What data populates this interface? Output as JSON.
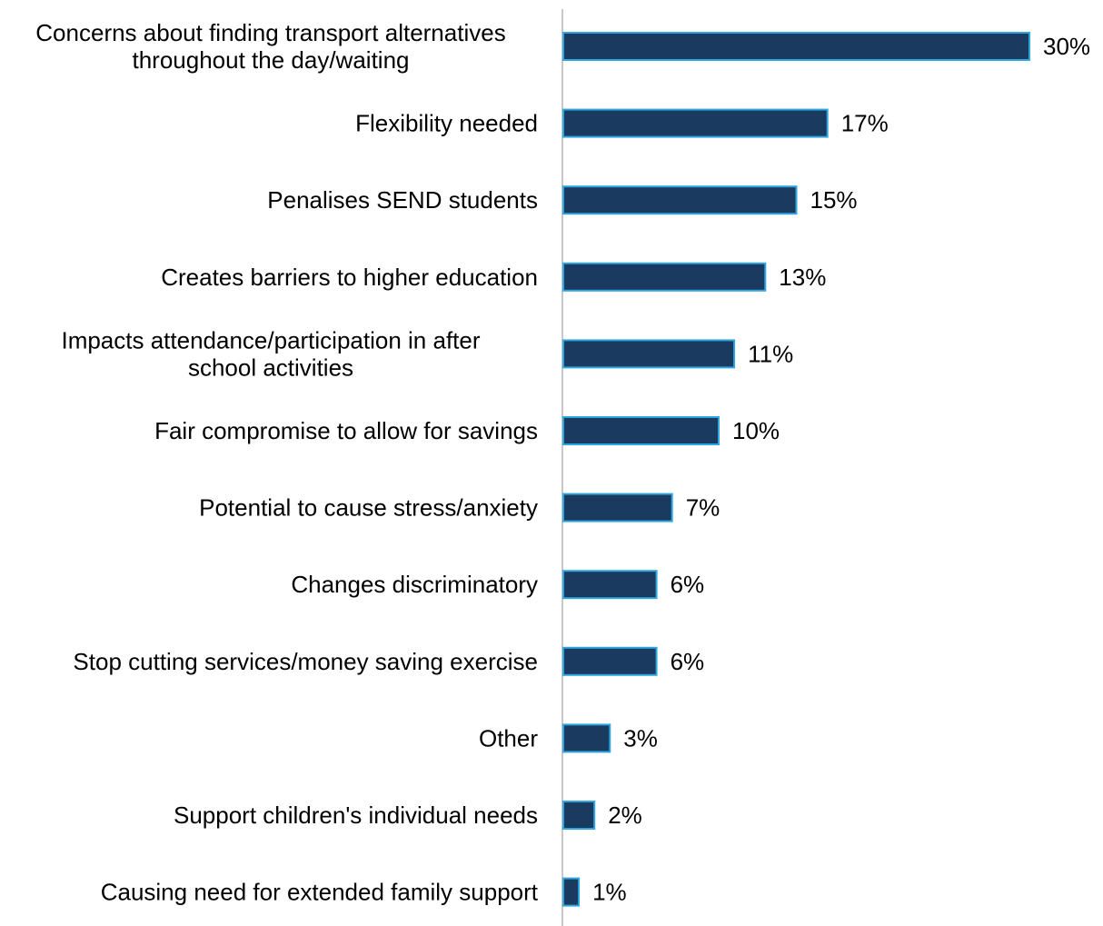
{
  "chart_data": {
    "type": "bar",
    "orientation": "horizontal",
    "categories": [
      [
        "Concerns about finding transport alternatives",
        "throughout the day/waiting"
      ],
      [
        "Flexibility needed"
      ],
      [
        "Penalises SEND students"
      ],
      [
        "Creates barriers to higher education"
      ],
      [
        "Impacts attendance/participation in after",
        "school activities"
      ],
      [
        "Fair compromise to allow for savings"
      ],
      [
        "Potential to cause stress/anxiety"
      ],
      [
        "Changes discriminatory"
      ],
      [
        "Stop cutting services/money saving exercise"
      ],
      [
        "Other"
      ],
      [
        "Support children's individual needs"
      ],
      [
        "Causing need for extended family support"
      ]
    ],
    "values": [
      30,
      17,
      15,
      13,
      11,
      10,
      7,
      6,
      6,
      3,
      2,
      1
    ],
    "value_labels": [
      "30%",
      "17%",
      "15%",
      "13%",
      "11%",
      "10%",
      "7%",
      "6%",
      "6%",
      "3%",
      "2%",
      "1%"
    ],
    "unit": "%",
    "xlim": [
      0,
      30
    ],
    "grid": false,
    "legend": "none",
    "colors": {
      "bar_fill": "#1a3a5f",
      "bar_stroke": "#2ea6e0",
      "axis": "#c8c8c8",
      "text": "#000000"
    }
  }
}
